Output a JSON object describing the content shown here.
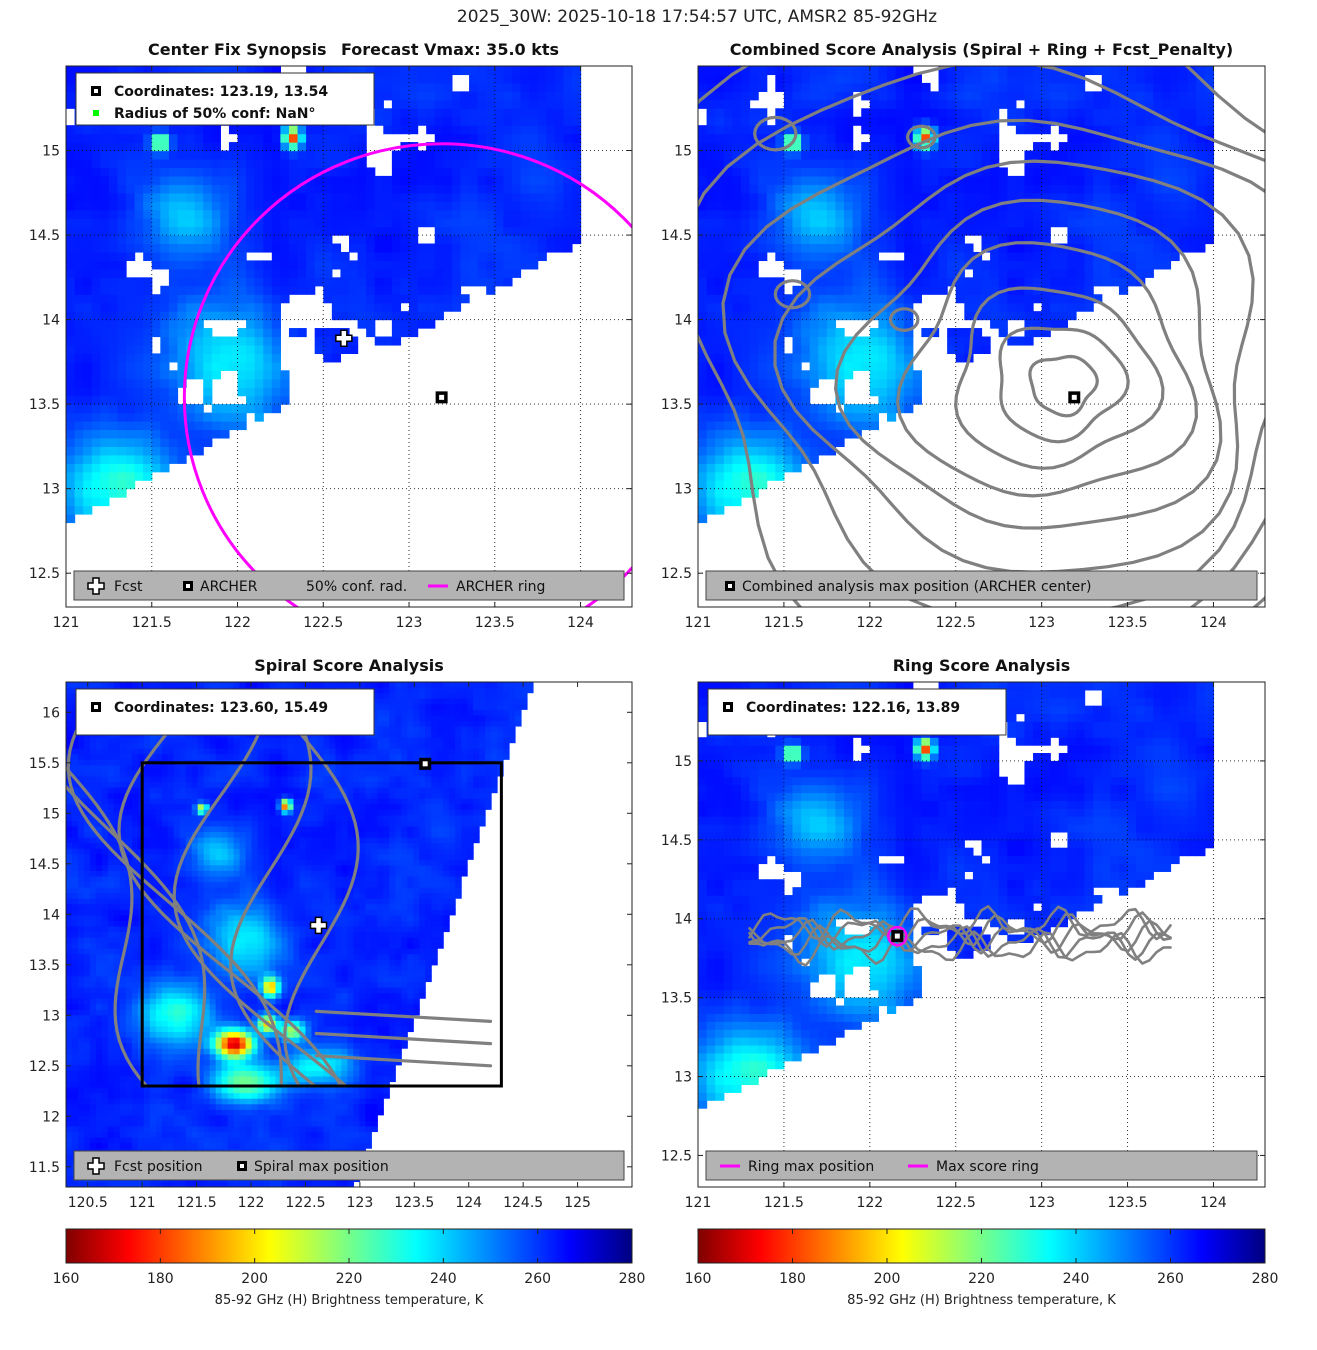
{
  "figure_title": "2025_30W: 2025-10-18 17:54:57 UTC, AMSR2 85-92GHz",
  "colors": {
    "archer_ring": "#ff00ff",
    "contour": "#808080",
    "legend_bg": "#b3b3b3",
    "box_outline": "#000000",
    "conf_marker": "#00ff00"
  },
  "chart_data": [
    {
      "id": "center-fix",
      "type": "heatmap",
      "title_left": "Center Fix Synopsis",
      "title_right": "Forecast Vmax: 35.0 kts",
      "xlim": [
        121,
        124.3
      ],
      "ylim": [
        12.3,
        15.5
      ],
      "xticks": [
        121,
        121.5,
        122,
        122.5,
        123,
        123.5,
        124
      ],
      "xtick_labels": [
        "121",
        "121.5",
        "122",
        "122.5",
        "123",
        "123.5",
        "124"
      ],
      "yticks": [
        12.5,
        13,
        13.5,
        14,
        14.5,
        15
      ],
      "ytick_labels": [
        "12.5",
        "13",
        "13.5",
        "14",
        "14.5",
        "15"
      ],
      "grid": true,
      "info_lines": [
        "Coordinates: 123.19, 13.54",
        "Radius of 50% conf: NaN°"
      ],
      "legend_items": [
        "Fcst",
        "ARCHER",
        "50% conf. rad.",
        "ARCHER ring"
      ],
      "legend_placement": "bottom",
      "fcst_position": [
        122.62,
        13.89
      ],
      "archer_center": [
        123.19,
        13.54
      ],
      "archer_ring_center": [
        123.19,
        13.54
      ],
      "archer_ring_radius_deg": 1.5
    },
    {
      "id": "combined",
      "type": "heatmap",
      "title": "Combined Score Analysis (Spiral + Ring + Fcst_Penalty)",
      "xlim": [
        121,
        124.3
      ],
      "ylim": [
        12.3,
        15.5
      ],
      "xticks": [
        121,
        121.5,
        122,
        122.5,
        123,
        123.5,
        124
      ],
      "xtick_labels": [
        "121",
        "121.5",
        "122",
        "122.5",
        "123",
        "123.5",
        "124"
      ],
      "yticks": [
        12.5,
        13,
        13.5,
        14,
        14.5,
        15
      ],
      "ytick_labels": [
        "12.5",
        "13",
        "13.5",
        "14",
        "14.5",
        "15"
      ],
      "grid": true,
      "legend_items": [
        "Combined analysis max position (ARCHER center)"
      ],
      "legend_placement": "bottom",
      "max_position": [
        123.19,
        13.54
      ],
      "contour_center": [
        123.15,
        13.6
      ]
    },
    {
      "id": "spiral",
      "type": "heatmap",
      "title": "Spiral Score Analysis",
      "xlim": [
        120.3,
        125.5
      ],
      "ylim": [
        11.3,
        16.3
      ],
      "xticks": [
        120.5,
        121,
        121.5,
        122,
        122.5,
        123,
        123.5,
        124,
        124.5,
        125
      ],
      "xtick_labels": [
        "120.5",
        "121",
        "121.5",
        "122",
        "122.5",
        "123",
        "123.5",
        "124",
        "124.5",
        "125"
      ],
      "yticks": [
        11.5,
        12,
        12.5,
        13,
        13.5,
        14,
        14.5,
        15,
        15.5,
        16
      ],
      "ytick_labels": [
        "11.5",
        "12",
        "12.5",
        "13",
        "13.5",
        "14",
        "14.5",
        "15",
        "15.5",
        "16"
      ],
      "grid": false,
      "info_lines": [
        "Coordinates: 123.60, 15.49"
      ],
      "legend_items": [
        "Fcst position",
        "Spiral max position"
      ],
      "legend_placement": "bottom",
      "fcst_position": [
        122.62,
        13.89
      ],
      "max_position": [
        123.6,
        15.49
      ],
      "search_box": {
        "x": [
          121,
          124.3
        ],
        "y": [
          12.3,
          15.5
        ]
      }
    },
    {
      "id": "ring",
      "type": "heatmap",
      "title": "Ring Score Analysis",
      "xlim": [
        121,
        124.3
      ],
      "ylim": [
        12.3,
        15.5
      ],
      "xticks": [
        121,
        121.5,
        122,
        122.5,
        123,
        123.5,
        124
      ],
      "xtick_labels": [
        "121",
        "121.5",
        "122",
        "122.5",
        "123",
        "123.5",
        "124"
      ],
      "yticks": [
        12.5,
        13,
        13.5,
        14,
        14.5,
        15
      ],
      "ytick_labels": [
        "12.5",
        "13",
        "13.5",
        "14",
        "14.5",
        "15"
      ],
      "grid": true,
      "info_lines": [
        "Coordinates: 122.16, 13.89"
      ],
      "legend_items": [
        "Ring max position",
        "Max score ring"
      ],
      "legend_placement": "bottom",
      "max_position": [
        122.16,
        13.89
      ]
    }
  ],
  "colorbars": [
    {
      "label": "85-92 GHz (H) Brightness temperature, K",
      "range": [
        160,
        280
      ],
      "ticks": [
        160,
        180,
        200,
        220,
        240,
        260,
        280
      ],
      "tick_labels": [
        "160",
        "180",
        "200",
        "220",
        "240",
        "260",
        "280"
      ],
      "colormap": "jet_reversed"
    },
    {
      "label": "85-92 GHz (H) Brightness temperature, K",
      "range": [
        160,
        280
      ],
      "ticks": [
        160,
        180,
        200,
        220,
        240,
        260,
        280
      ],
      "tick_labels": [
        "160",
        "180",
        "200",
        "220",
        "240",
        "260",
        "280"
      ],
      "colormap": "jet_reversed"
    }
  ]
}
